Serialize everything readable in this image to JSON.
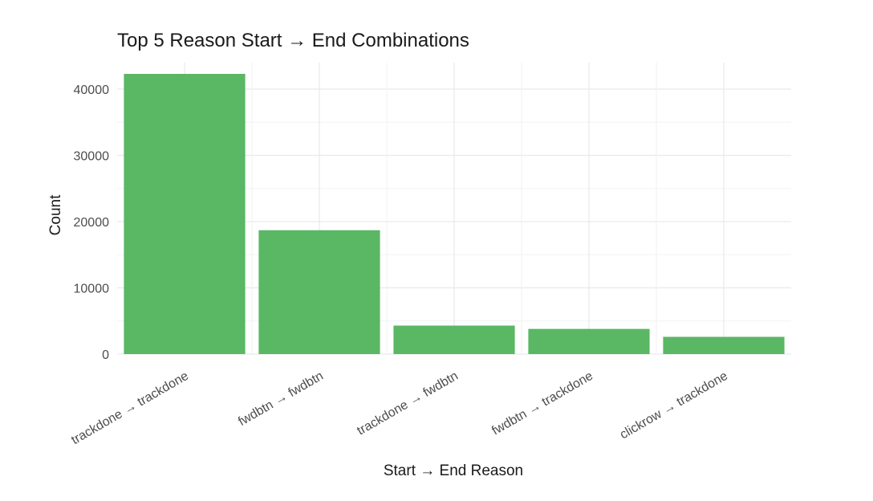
{
  "chart_data": {
    "type": "bar",
    "title": "Top 5 Reason Start → End Combinations",
    "xlabel": "Start → End Reason",
    "ylabel": "Count",
    "categories": [
      "trackdone → trackdone",
      "fwdbtn → fwdbtn",
      "trackdone → fwdbtn",
      "fwdbtn → trackdone",
      "clickrow → trackdone"
    ],
    "values": [
      42300,
      18700,
      4300,
      3800,
      2600
    ],
    "ylim": [
      0,
      44000
    ],
    "yticks": [
      0,
      10000,
      20000,
      30000,
      40000
    ],
    "ytick_labels": [
      "0",
      "10000",
      "20000",
      "30000",
      "40000"
    ],
    "grid": true,
    "bar_color": "#5ab764",
    "legend": "none"
  }
}
